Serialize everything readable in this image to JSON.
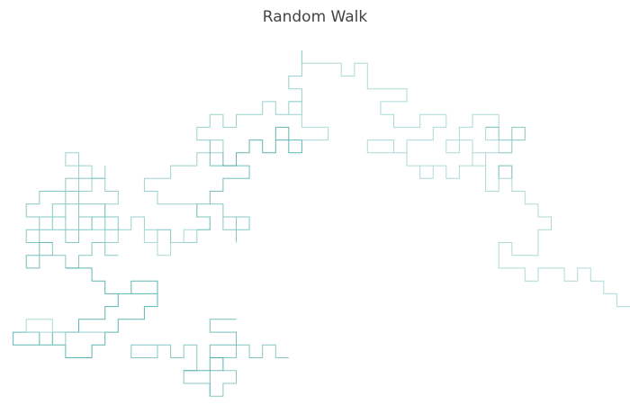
{
  "chart_data": {
    "type": "line",
    "title": "Random Walk",
    "xlabel": "",
    "ylabel": "",
    "grid": false,
    "legend": "none",
    "axes_visible": false,
    "xlim": [
      -24,
      24
    ],
    "ylim": [
      -13,
      13
    ],
    "line_color_start": "#e6f4f1",
    "line_color_end": "#2a9d9a",
    "segments": [
      [
        [
          -1,
          13
        ],
        [
          -1,
          12
        ],
        [
          2,
          12
        ],
        [
          2,
          11
        ],
        [
          3,
          11
        ],
        [
          3,
          12
        ],
        [
          4,
          12
        ],
        [
          4,
          10
        ],
        [
          7,
          10
        ],
        [
          7,
          9
        ],
        [
          5,
          9
        ],
        [
          5,
          8
        ],
        [
          6,
          8
        ],
        [
          6,
          7
        ],
        [
          8,
          7
        ],
        [
          8,
          8
        ],
        [
          10,
          8
        ],
        [
          10,
          7
        ],
        [
          9,
          7
        ],
        [
          9,
          6
        ],
        [
          7,
          6
        ],
        [
          7,
          5
        ],
        [
          4,
          5
        ],
        [
          4,
          6
        ],
        [
          6,
          6
        ],
        [
          6,
          5
        ],
        [
          7,
          5
        ],
        [
          7,
          4
        ],
        [
          9,
          4
        ],
        [
          9,
          3
        ],
        [
          8,
          3
        ],
        [
          8,
          4
        ],
        [
          10,
          4
        ],
        [
          10,
          3
        ],
        [
          11,
          3
        ],
        [
          11,
          4
        ],
        [
          13,
          4
        ],
        [
          13,
          5
        ],
        [
          12,
          5
        ],
        [
          12,
          6
        ],
        [
          11,
          6
        ],
        [
          11,
          5
        ],
        [
          10,
          5
        ],
        [
          10,
          6
        ],
        [
          11,
          6
        ],
        [
          11,
          7
        ],
        [
          12,
          7
        ],
        [
          12,
          8
        ],
        [
          14,
          8
        ],
        [
          14,
          7
        ],
        [
          13,
          7
        ],
        [
          13,
          6
        ],
        [
          14,
          6
        ],
        [
          14,
          5
        ],
        [
          12,
          5
        ],
        [
          12,
          4
        ],
        [
          13,
          4
        ],
        [
          13,
          2
        ],
        [
          14,
          2
        ],
        [
          14,
          3
        ],
        [
          15,
          3
        ],
        [
          15,
          2
        ],
        [
          16,
          2
        ],
        [
          16,
          1
        ],
        [
          17,
          1
        ],
        [
          17,
          0
        ],
        [
          18,
          0
        ],
        [
          18,
          -1
        ],
        [
          17,
          -1
        ],
        [
          17,
          -3
        ],
        [
          15,
          -3
        ],
        [
          15,
          -2
        ],
        [
          14,
          -2
        ],
        [
          14,
          -4
        ],
        [
          16,
          -4
        ],
        [
          16,
          -5
        ],
        [
          17,
          -5
        ],
        [
          17,
          -4
        ],
        [
          19,
          -4
        ],
        [
          19,
          -5
        ],
        [
          20,
          -5
        ],
        [
          20,
          -4
        ],
        [
          21,
          -4
        ],
        [
          21,
          -5
        ],
        [
          22,
          -5
        ],
        [
          22,
          -6
        ],
        [
          23,
          -6
        ],
        [
          23,
          -7
        ],
        [
          24,
          -7
        ]
      ],
      [
        [
          -1,
          13
        ],
        [
          -1,
          11
        ],
        [
          -2,
          11
        ],
        [
          -2,
          10
        ],
        [
          -1,
          10
        ],
        [
          -1,
          9
        ],
        [
          -2,
          9
        ],
        [
          -2,
          8
        ],
        [
          -3,
          8
        ],
        [
          -3,
          9
        ],
        [
          -4,
          9
        ],
        [
          -4,
          8
        ],
        [
          -6,
          8
        ],
        [
          -6,
          7
        ],
        [
          -7,
          7
        ],
        [
          -7,
          8
        ],
        [
          -8,
          8
        ],
        [
          -8,
          7
        ],
        [
          -9,
          7
        ],
        [
          -9,
          6
        ],
        [
          -7,
          6
        ],
        [
          -7,
          5
        ],
        [
          -9,
          5
        ],
        [
          -9,
          4
        ],
        [
          -11,
          4
        ],
        [
          -11,
          3
        ],
        [
          -13,
          3
        ],
        [
          -13,
          2
        ],
        [
          -12,
          2
        ],
        [
          -12,
          1
        ],
        [
          -9,
          1
        ],
        [
          -9,
          0
        ],
        [
          -8,
          0
        ],
        [
          -8,
          -1
        ],
        [
          -9,
          -1
        ],
        [
          -9,
          -2
        ],
        [
          -11,
          -2
        ],
        [
          -11,
          -1
        ],
        [
          -13,
          -1
        ],
        [
          -13,
          0
        ],
        [
          -14,
          0
        ],
        [
          -14,
          -1
        ],
        [
          -15,
          -1
        ],
        [
          -15,
          -2
        ],
        [
          -16,
          -2
        ],
        [
          -16,
          -1
        ],
        [
          -17,
          -1
        ],
        [
          -17,
          0
        ],
        [
          -16,
          0
        ],
        [
          -16,
          1
        ],
        [
          -15,
          1
        ],
        [
          -15,
          2
        ],
        [
          -16,
          2
        ],
        [
          -16,
          3
        ],
        [
          -17,
          3
        ],
        [
          -17,
          2
        ],
        [
          -18,
          2
        ],
        [
          -18,
          4
        ],
        [
          -19,
          4
        ],
        [
          -19,
          5
        ],
        [
          -18,
          5
        ],
        [
          -18,
          4
        ],
        [
          -17,
          4
        ],
        [
          -17,
          3
        ],
        [
          -16,
          3
        ],
        [
          -16,
          4
        ]
      ],
      [
        [
          -16,
          3
        ],
        [
          -19,
          3
        ],
        [
          -19,
          2
        ],
        [
          -21,
          2
        ],
        [
          -21,
          1
        ],
        [
          -22,
          1
        ],
        [
          -22,
          0
        ],
        [
          -21,
          0
        ],
        [
          -21,
          -1
        ],
        [
          -20,
          -1
        ],
        [
          -20,
          0
        ],
        [
          -19,
          0
        ],
        [
          -19,
          1
        ],
        [
          -18,
          1
        ],
        [
          -18,
          0
        ],
        [
          -17,
          0
        ],
        [
          -17,
          -1
        ],
        [
          -18,
          -1
        ],
        [
          -18,
          -2
        ],
        [
          -19,
          -2
        ],
        [
          -19,
          -1
        ],
        [
          -21,
          -1
        ],
        [
          -21,
          -2
        ],
        [
          -22,
          -2
        ],
        [
          -22,
          -1
        ],
        [
          -21,
          -1
        ],
        [
          -21,
          0
        ],
        [
          -20,
          0
        ],
        [
          -20,
          1
        ],
        [
          -19,
          1
        ],
        [
          -19,
          2
        ],
        [
          -18,
          2
        ],
        [
          -18,
          1
        ],
        [
          -16,
          1
        ],
        [
          -16,
          0
        ],
        [
          -15,
          0
        ],
        [
          -15,
          -1
        ],
        [
          -16,
          -1
        ],
        [
          -16,
          0
        ],
        [
          -18,
          0
        ],
        [
          -18,
          -1
        ],
        [
          -19,
          -1
        ],
        [
          -19,
          0
        ],
        [
          -20,
          0
        ],
        [
          -20,
          -1
        ],
        [
          -21,
          -1
        ],
        [
          -21,
          -2
        ],
        [
          -20,
          -2
        ],
        [
          -20,
          -3
        ],
        [
          -19,
          -3
        ],
        [
          -19,
          -4
        ],
        [
          -18,
          -4
        ],
        [
          -18,
          -3
        ],
        [
          -17,
          -3
        ],
        [
          -17,
          -2
        ],
        [
          -16,
          -2
        ],
        [
          -16,
          -3
        ],
        [
          -15,
          -3
        ]
      ],
      [
        [
          -20,
          -3
        ],
        [
          -21,
          -3
        ],
        [
          -21,
          -4
        ],
        [
          -22,
          -4
        ],
        [
          -22,
          -3
        ],
        [
          -21,
          -3
        ],
        [
          -21,
          -2
        ],
        [
          -20,
          -2
        ]
      ],
      [
        [
          -19,
          -4
        ],
        [
          -17,
          -4
        ],
        [
          -17,
          -5
        ],
        [
          -16,
          -5
        ],
        [
          -16,
          -6
        ],
        [
          -14,
          -6
        ],
        [
          -14,
          -5
        ],
        [
          -12,
          -5
        ],
        [
          -12,
          -6
        ],
        [
          -15,
          -6
        ],
        [
          -15,
          -7
        ],
        [
          -16,
          -7
        ],
        [
          -16,
          -8
        ],
        [
          -18,
          -8
        ],
        [
          -18,
          -9
        ],
        [
          -20,
          -9
        ],
        [
          -20,
          -10
        ],
        [
          -21,
          -10
        ],
        [
          -21,
          -9
        ],
        [
          -23,
          -9
        ],
        [
          -23,
          -10
        ],
        [
          -19,
          -10
        ],
        [
          -19,
          -11
        ],
        [
          -17,
          -11
        ],
        [
          -17,
          -10
        ],
        [
          -16,
          -10
        ],
        [
          -16,
          -9
        ],
        [
          -15,
          -9
        ],
        [
          -15,
          -8
        ],
        [
          -13,
          -8
        ],
        [
          -13,
          -7
        ],
        [
          -12,
          -7
        ],
        [
          -12,
          -6
        ]
      ],
      [
        [
          -20,
          -9
        ],
        [
          -20,
          -8
        ],
        [
          -22,
          -8
        ],
        [
          -22,
          -9
        ],
        [
          -19,
          -9
        ],
        [
          -19,
          -10
        ]
      ],
      [
        [
          -16,
          -9
        ],
        [
          -19,
          -9
        ],
        [
          -19,
          -10
        ]
      ],
      [
        [
          -11,
          -10
        ],
        [
          -14,
          -10
        ],
        [
          -14,
          -11
        ],
        [
          -12,
          -11
        ],
        [
          -12,
          -10
        ],
        [
          -11,
          -10
        ],
        [
          -11,
          -11
        ],
        [
          -10,
          -11
        ],
        [
          -10,
          -10
        ],
        [
          -9,
          -10
        ],
        [
          -9,
          -12
        ],
        [
          -10,
          -12
        ],
        [
          -10,
          -13
        ],
        [
          -8,
          -13
        ],
        [
          -8,
          -14
        ],
        [
          -7,
          -14
        ],
        [
          -7,
          -13
        ],
        [
          -6,
          -13
        ],
        [
          -6,
          -12
        ],
        [
          -7,
          -12
        ],
        [
          -7,
          -11
        ],
        [
          -6,
          -11
        ],
        [
          -6,
          -10
        ],
        [
          -5,
          -10
        ],
        [
          -5,
          -11
        ],
        [
          -4,
          -11
        ],
        [
          -4,
          -10
        ],
        [
          -3,
          -10
        ],
        [
          -3,
          -11
        ],
        [
          -2,
          -11
        ]
      ],
      [
        [
          -8,
          -14
        ],
        [
          -8,
          -12
        ],
        [
          -7,
          -12
        ],
        [
          -7,
          -11
        ],
        [
          -8,
          -11
        ],
        [
          -8,
          -10
        ],
        [
          -6,
          -10
        ],
        [
          -6,
          -9
        ],
        [
          -8,
          -9
        ],
        [
          -8,
          -8
        ],
        [
          -6,
          -8
        ]
      ],
      [
        [
          -10,
          -12
        ],
        [
          -8,
          -12
        ],
        [
          -8,
          -11
        ],
        [
          -7,
          -11
        ]
      ],
      [
        [
          -13,
          -1
        ],
        [
          -13,
          -2
        ],
        [
          -12,
          -2
        ],
        [
          -12,
          -3
        ],
        [
          -11,
          -3
        ],
        [
          -11,
          -2
        ],
        [
          -10,
          -2
        ],
        [
          -10,
          -1
        ],
        [
          -9,
          -1
        ]
      ],
      [
        [
          -11,
          -2
        ],
        [
          -11,
          -1
        ],
        [
          -12,
          -1
        ],
        [
          -12,
          -2
        ]
      ],
      [
        [
          -9,
          -1
        ],
        [
          -8,
          -1
        ],
        [
          -8,
          0
        ],
        [
          -9,
          0
        ],
        [
          -9,
          1
        ],
        [
          -7,
          1
        ],
        [
          -7,
          0
        ],
        [
          -6,
          0
        ],
        [
          -6,
          -1
        ],
        [
          -7,
          -1
        ],
        [
          -7,
          0
        ],
        [
          -5,
          0
        ],
        [
          -5,
          -1
        ],
        [
          -6,
          -1
        ],
        [
          -6,
          -2
        ]
      ],
      [
        [
          -8,
          1
        ],
        [
          -8,
          2
        ],
        [
          -7,
          2
        ],
        [
          -7,
          3
        ],
        [
          -5,
          3
        ],
        [
          -5,
          4
        ],
        [
          -8,
          4
        ],
        [
          -8,
          6
        ]
      ],
      [
        [
          -7,
          5
        ],
        [
          -7,
          4
        ],
        [
          -6,
          4
        ],
        [
          -6,
          5
        ],
        [
          -5,
          5
        ],
        [
          -5,
          6
        ],
        [
          -4,
          6
        ],
        [
          -4,
          5
        ],
        [
          -3,
          5
        ],
        [
          -3,
          6
        ],
        [
          -2,
          6
        ],
        [
          -2,
          5
        ],
        [
          -1,
          5
        ],
        [
          -1,
          6
        ],
        [
          -2,
          6
        ],
        [
          -2,
          7
        ],
        [
          -3,
          7
        ],
        [
          -3,
          6
        ]
      ],
      [
        [
          -1,
          6
        ],
        [
          1,
          6
        ],
        [
          1,
          7
        ],
        [
          -1,
          7
        ],
        [
          -1,
          8
        ]
      ],
      [
        [
          -2,
          8
        ],
        [
          -1,
          8
        ],
        [
          -1,
          9
        ],
        [
          -2,
          9
        ]
      ],
      [
        [
          14,
          5
        ],
        [
          15,
          5
        ],
        [
          15,
          6
        ],
        [
          16,
          6
        ],
        [
          16,
          7
        ],
        [
          15,
          7
        ],
        [
          15,
          6
        ],
        [
          14,
          6
        ],
        [
          14,
          7
        ],
        [
          13,
          7
        ]
      ],
      [
        [
          14,
          3
        ],
        [
          14,
          4
        ],
        [
          15,
          4
        ],
        [
          15,
          3
        ]
      ]
    ]
  }
}
